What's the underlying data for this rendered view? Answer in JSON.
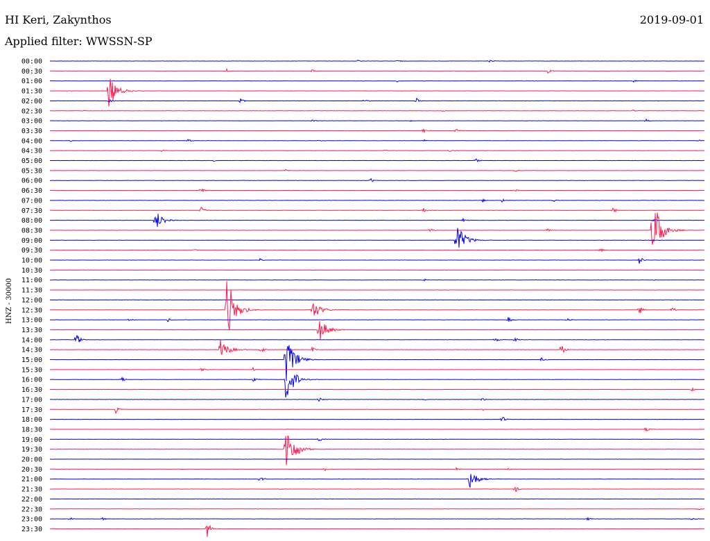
{
  "header": {
    "station": "HI Keri, Zakynthos",
    "date": "2019-09-01",
    "filter": "Applied filter: WWSSN-SP"
  },
  "chart_data": {
    "type": "line",
    "title": "HI Keri, Zakynthos",
    "subtitle": "Applied filter: WWSSN-SP",
    "ylabel": "HNZ - 30000",
    "xlabel": "",
    "colors": [
      "#0000ee",
      "#ff1a4d"
    ],
    "grid": false,
    "legend": "none",
    "traces": [
      {
        "label": "00:00",
        "events": [
          [
            0.47,
            2
          ],
          [
            0.53,
            2.5
          ],
          [
            0.67,
            3
          ]
        ]
      },
      {
        "label": "00:30",
        "events": [
          [
            0.27,
            3
          ],
          [
            0.4,
            3
          ],
          [
            0.76,
            6
          ]
        ]
      },
      {
        "label": "01:00",
        "events": [
          [
            0.53,
            2
          ],
          [
            0.89,
            3
          ]
        ]
      },
      {
        "label": "01:30",
        "events": [
          [
            0.09,
            24
          ]
        ]
      },
      {
        "label": "02:00",
        "events": [
          [
            0.09,
            4
          ],
          [
            0.29,
            5
          ],
          [
            0.48,
            4
          ],
          [
            0.56,
            4
          ]
        ]
      },
      {
        "label": "02:30",
        "events": [
          [
            0.05,
            2
          ],
          [
            0.6,
            2
          ],
          [
            0.89,
            2
          ]
        ]
      },
      {
        "label": "03:00",
        "events": [
          [
            0.4,
            2
          ],
          [
            0.55,
            2
          ],
          [
            0.91,
            3
          ]
        ]
      },
      {
        "label": "03:30",
        "events": [
          [
            0.57,
            5
          ],
          [
            0.62,
            4
          ]
        ]
      },
      {
        "label": "04:00",
        "events": [
          [
            0.03,
            2
          ],
          [
            0.21,
            3
          ],
          [
            0.41,
            2
          ],
          [
            0.57,
            2
          ],
          [
            0.99,
            2
          ]
        ]
      },
      {
        "label": "04:30",
        "events": [
          [
            0.17,
            2
          ],
          [
            0.51,
            2
          ],
          [
            0.61,
            2
          ]
        ]
      },
      {
        "label": "05:00",
        "events": [
          [
            0.25,
            2
          ],
          [
            0.65,
            4
          ]
        ]
      },
      {
        "label": "05:30",
        "events": [
          [
            0.36,
            2
          ],
          [
            0.71,
            2
          ]
        ]
      },
      {
        "label": "06:00",
        "events": [
          [
            0.49,
            3
          ]
        ]
      },
      {
        "label": "06:30",
        "events": [
          [
            0.23,
            9
          ],
          [
            0.71,
            2
          ]
        ]
      },
      {
        "label": "07:00",
        "events": [
          [
            0.66,
            3
          ],
          [
            0.69,
            3
          ],
          [
            0.77,
            2
          ]
        ]
      },
      {
        "label": "07:30",
        "events": [
          [
            0.23,
            8
          ],
          [
            0.57,
            4
          ],
          [
            0.86,
            5
          ]
        ]
      },
      {
        "label": "08:00",
        "events": [
          [
            0.16,
            16
          ],
          [
            0.63,
            4
          ],
          [
            0.92,
            3
          ]
        ]
      },
      {
        "label": "08:30",
        "events": [
          [
            0.58,
            4
          ],
          [
            0.76,
            3
          ],
          [
            0.92,
            55
          ]
        ]
      },
      {
        "label": "09:00",
        "events": [
          [
            0.62,
            28
          ]
        ]
      },
      {
        "label": "09:30",
        "events": [
          [
            0.22,
            2
          ],
          [
            0.84,
            4
          ]
        ]
      },
      {
        "label": "10:00",
        "events": [
          [
            0.32,
            3
          ],
          [
            0.9,
            7
          ]
        ]
      },
      {
        "label": "10:30",
        "events": []
      },
      {
        "label": "11:00",
        "events": [
          [
            0.57,
            3
          ],
          [
            0.92,
            2
          ]
        ]
      },
      {
        "label": "11:30",
        "events": []
      },
      {
        "label": "12:00",
        "events": []
      },
      {
        "label": "12:30",
        "events": [
          [
            0.27,
            55
          ],
          [
            0.4,
            16
          ],
          [
            0.9,
            8
          ],
          [
            0.95,
            6
          ]
        ]
      },
      {
        "label": "13:00",
        "events": [
          [
            0.12,
            3
          ],
          [
            0.18,
            3
          ],
          [
            0.7,
            7
          ],
          [
            0.79,
            4
          ]
        ]
      },
      {
        "label": "13:30",
        "events": [
          [
            0.41,
            20
          ]
        ]
      },
      {
        "label": "14:00",
        "events": [
          [
            0.04,
            12
          ],
          [
            0.68,
            4
          ],
          [
            0.71,
            4
          ]
        ]
      },
      {
        "label": "14:30",
        "events": [
          [
            0.26,
            16
          ],
          [
            0.32,
            9
          ],
          [
            0.4,
            5
          ],
          [
            0.78,
            12
          ]
        ]
      },
      {
        "label": "15:00",
        "events": [
          [
            0.36,
            40
          ],
          [
            0.37,
            6
          ],
          [
            0.75,
            4
          ]
        ]
      },
      {
        "label": "15:30",
        "events": [
          [
            0.23,
            4
          ],
          [
            0.31,
            3
          ]
        ]
      },
      {
        "label": "16:00",
        "events": [
          [
            0.11,
            4
          ],
          [
            0.31,
            4
          ],
          [
            0.36,
            35
          ]
        ]
      },
      {
        "label": "16:30",
        "events": [
          [
            0.98,
            3
          ]
        ]
      },
      {
        "label": "17:00",
        "events": [
          [
            0.41,
            4
          ],
          [
            0.57,
            2
          ],
          [
            0.66,
            4
          ]
        ]
      },
      {
        "label": "17:30",
        "events": [
          [
            0.1,
            7
          ],
          [
            0.66,
            3
          ]
        ]
      },
      {
        "label": "18:00",
        "events": [
          [
            0.69,
            6
          ]
        ]
      },
      {
        "label": "18:30",
        "events": [
          [
            0.91,
            6
          ]
        ]
      },
      {
        "label": "19:00",
        "events": [
          [
            0.41,
            5
          ]
        ]
      },
      {
        "label": "19:30",
        "events": [
          [
            0.36,
            40
          ],
          [
            0.38,
            6
          ]
        ]
      },
      {
        "label": "20:00",
        "events": []
      },
      {
        "label": "20:30",
        "events": [
          [
            0.42,
            3
          ],
          [
            0.62,
            3
          ],
          [
            0.7,
            3
          ]
        ]
      },
      {
        "label": "21:00",
        "events": [
          [
            0.32,
            6
          ],
          [
            0.64,
            16
          ]
        ]
      },
      {
        "label": "21:30",
        "events": [
          [
            0.35,
            2
          ],
          [
            0.71,
            6
          ]
        ]
      },
      {
        "label": "22:00",
        "events": []
      },
      {
        "label": "22:30",
        "events": [
          [
            0.99,
            2
          ]
        ]
      },
      {
        "label": "23:00",
        "events": [
          [
            0.03,
            3
          ],
          [
            0.08,
            3
          ],
          [
            0.82,
            3
          ],
          [
            0.98,
            3
          ]
        ]
      },
      {
        "label": "23:30",
        "events": [
          [
            0.24,
            14
          ]
        ]
      }
    ]
  }
}
